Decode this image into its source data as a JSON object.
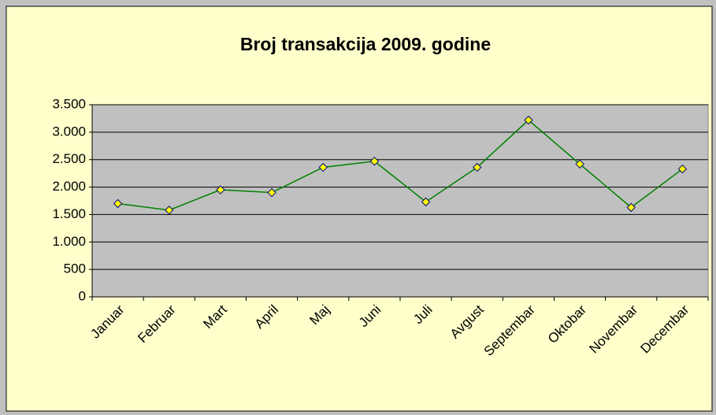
{
  "chart_data": {
    "type": "line",
    "title": "Broj transakcija 2009. godine",
    "categories": [
      "Januar",
      "Februar",
      "Mart",
      "April",
      "Maj",
      "Juni",
      "Juli",
      "Avgust",
      "Septembar",
      "Oktobar",
      "Novembar",
      "Decembar"
    ],
    "series": [
      {
        "name": "Broj transakcija",
        "color": "#008000",
        "values": [
          1700,
          1580,
          1950,
          1900,
          2360,
          2470,
          1730,
          2360,
          3220,
          2420,
          1630,
          2330
        ]
      }
    ],
    "ylim": [
      0,
      3500
    ],
    "yticks": [
      0,
      500,
      {
        "value": 1000,
        "label": "1.000"
      },
      {
        "value": 1500,
        "label": "1.500"
      },
      {
        "value": 2000,
        "label": "2.000"
      },
      {
        "value": 2500,
        "label": "2.500"
      },
      {
        "value": 3000,
        "label": "3.000"
      },
      {
        "value": 3500,
        "label": "3.500"
      }
    ],
    "grid": true,
    "marker_color": "#ffff00"
  }
}
